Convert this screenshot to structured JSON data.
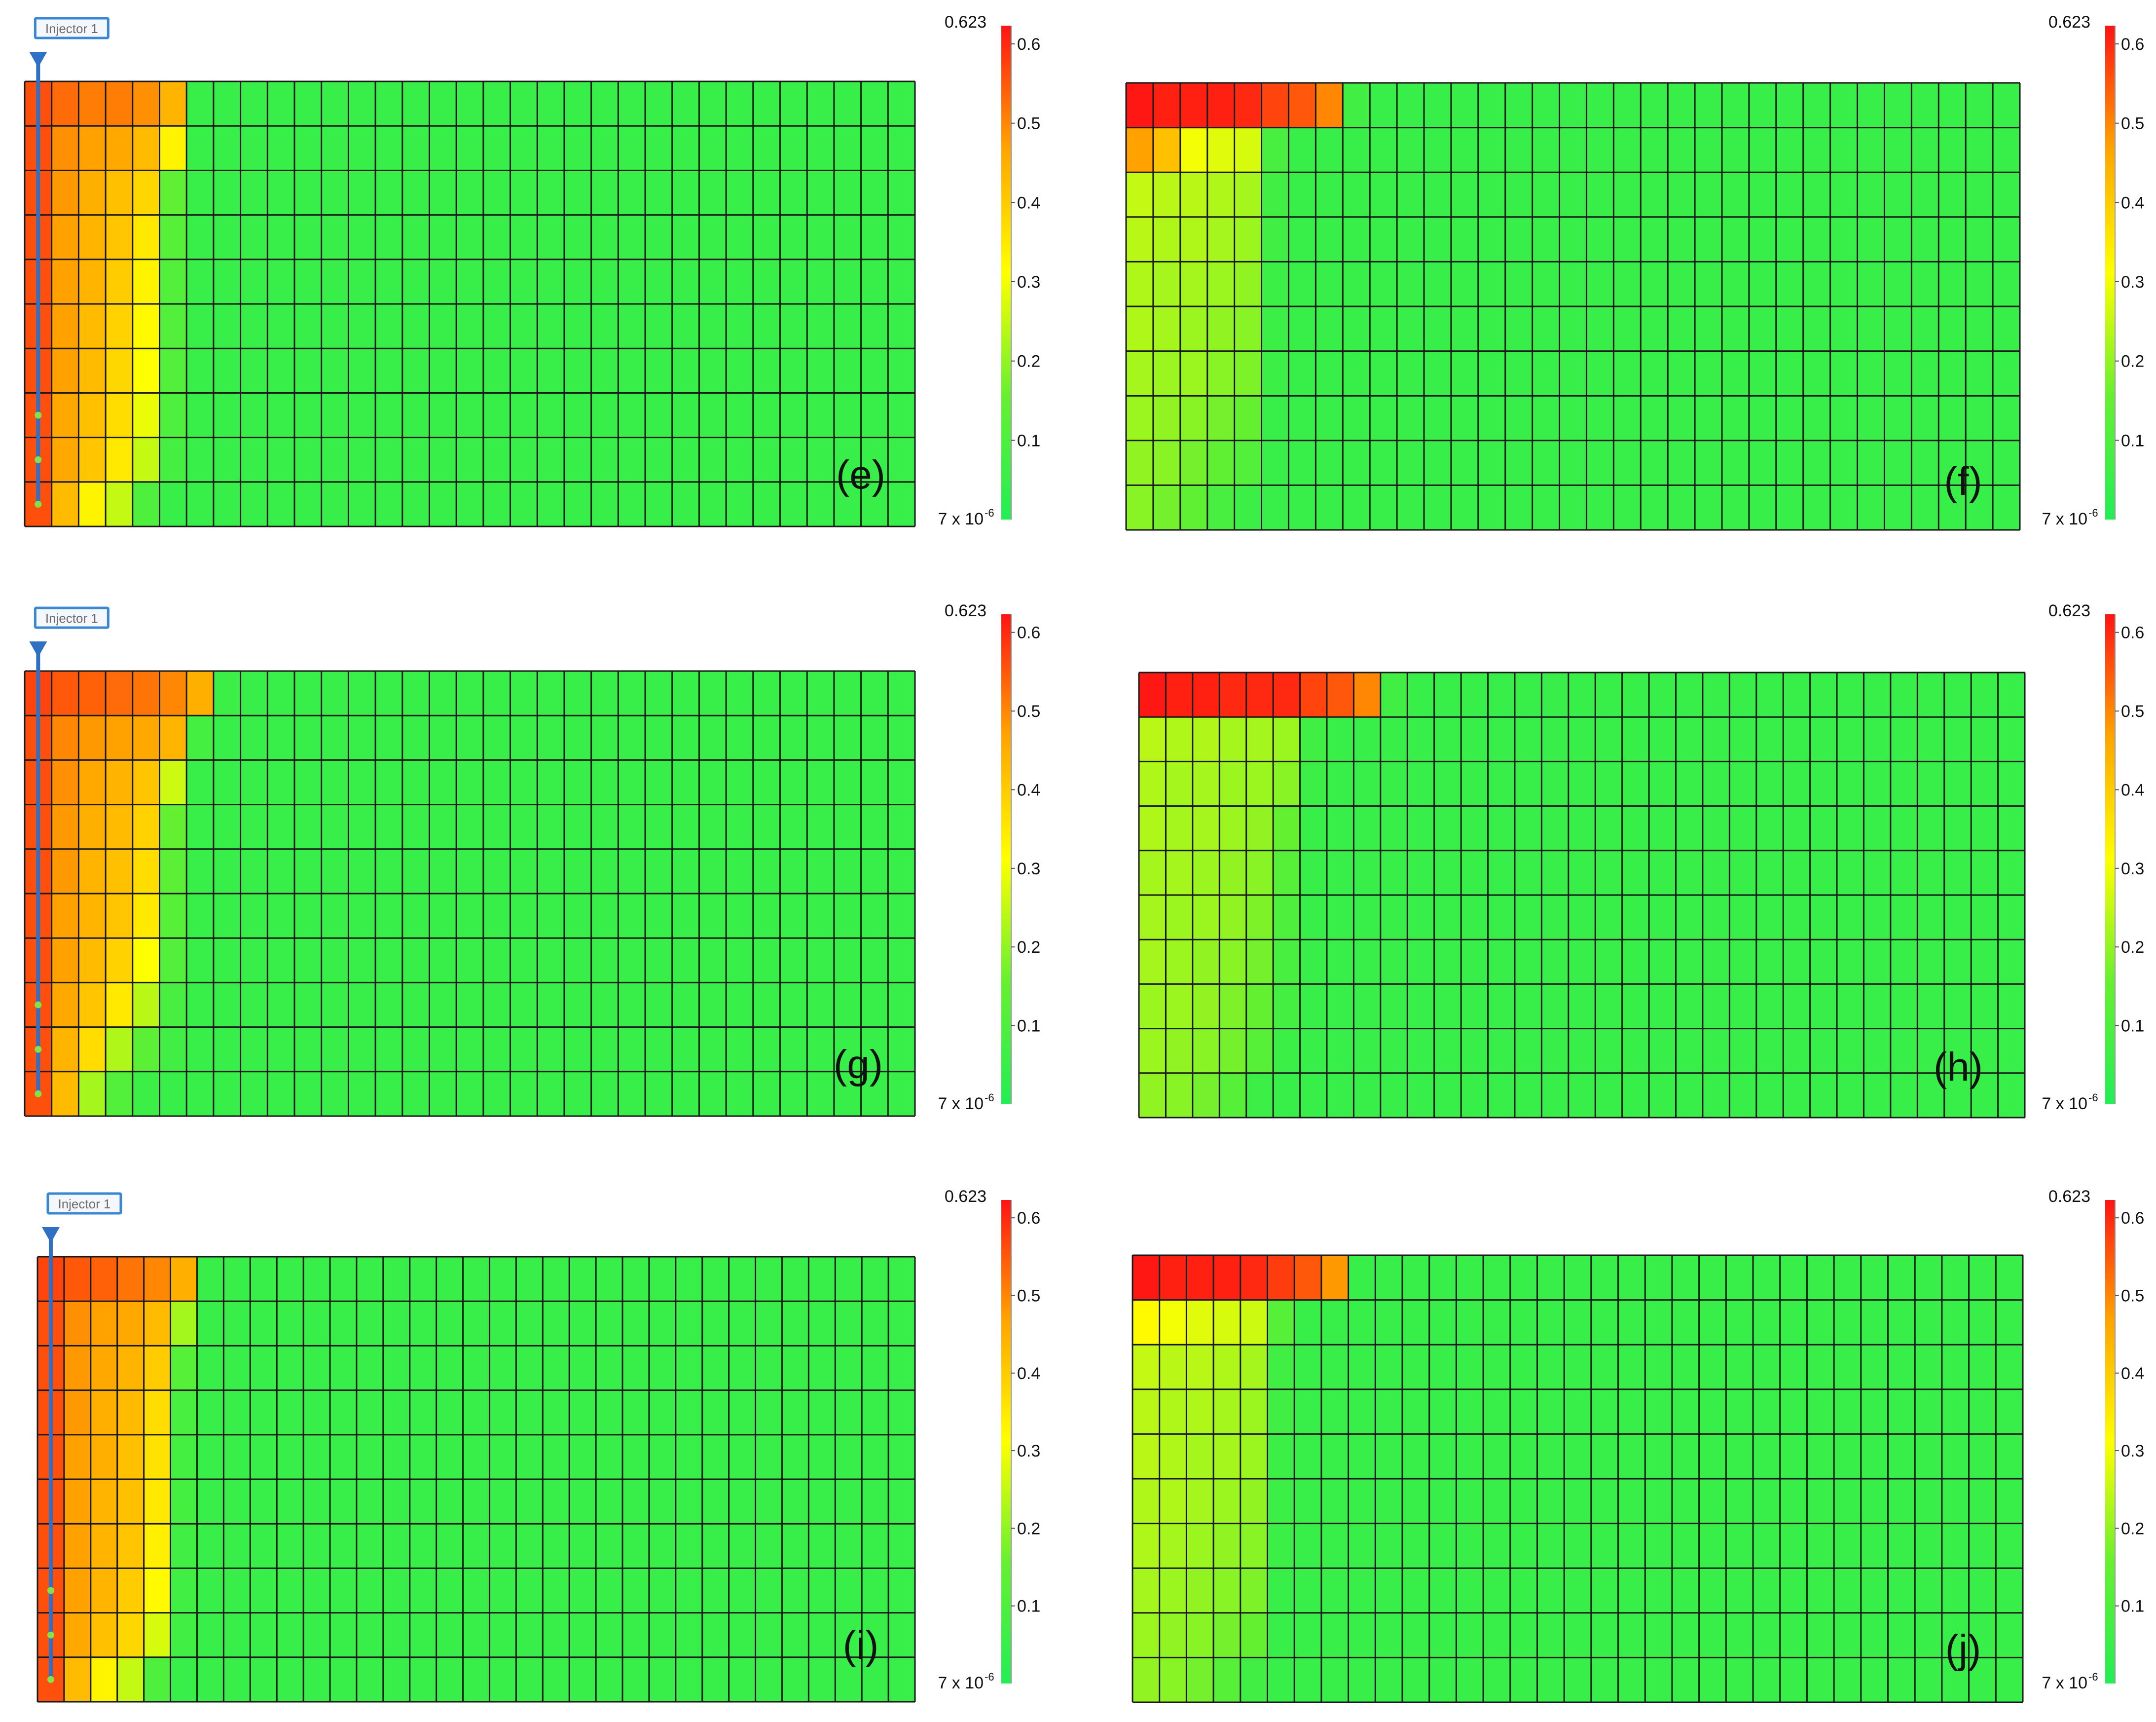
{
  "colors": {
    "scale_low": "#22ee55",
    "scale_mid": "#ffff00",
    "scale_high": "#ff1414",
    "grid_line": "#1a1a1a",
    "well_line": "#2f6fc4",
    "well_label_border": "#3a87d6",
    "well_perforation": "#7ee34f"
  },
  "well": {
    "label": "Injector 1",
    "icon": "triangle-down-icon"
  },
  "colorbar": {
    "max_label": "0.623",
    "min_label": "7 x 10",
    "min_exponent": "-6",
    "tick_values": [
      0.1,
      0.2,
      0.3,
      0.4,
      0.5,
      0.6
    ],
    "tick_labels": [
      "0.1",
      "0.2",
      "0.3",
      "0.4",
      "0.5",
      "0.6"
    ],
    "value_min": 7e-06,
    "value_max": 0.623
  },
  "panels": [
    {
      "label": "(e)",
      "has_well": true,
      "rows": [
        [
          0.56,
          0.53,
          0.51,
          0.51,
          0.49,
          0.44,
          0.05
        ],
        [
          0.56,
          0.49,
          0.47,
          0.46,
          0.43,
          0.33,
          0.05
        ],
        [
          0.56,
          0.48,
          0.45,
          0.42,
          0.38,
          0.14,
          0.05
        ],
        [
          0.56,
          0.47,
          0.44,
          0.41,
          0.35,
          0.12,
          0.05
        ],
        [
          0.56,
          0.47,
          0.44,
          0.4,
          0.33,
          0.11,
          0.05
        ],
        [
          0.56,
          0.47,
          0.43,
          0.39,
          0.32,
          0.11,
          0.05
        ],
        [
          0.56,
          0.47,
          0.43,
          0.38,
          0.31,
          0.11,
          0.05
        ],
        [
          0.56,
          0.46,
          0.42,
          0.37,
          0.29,
          0.1,
          0.05
        ],
        [
          0.56,
          0.46,
          0.41,
          0.35,
          0.25,
          0.08,
          0.05
        ],
        [
          0.56,
          0.43,
          0.33,
          0.25,
          0.1,
          0.05
        ]
      ]
    },
    {
      "label": "(f)",
      "has_well": false,
      "rows": [
        [
          0.62,
          0.61,
          0.61,
          0.61,
          0.6,
          0.57,
          0.55,
          0.5,
          0.07
        ],
        [
          0.47,
          0.42,
          0.3,
          0.28,
          0.27,
          0.09,
          0.05
        ],
        [
          0.25,
          0.24,
          0.24,
          0.23,
          0.22,
          0.07,
          0.05
        ],
        [
          0.24,
          0.23,
          0.23,
          0.22,
          0.21,
          0.07,
          0.05
        ],
        [
          0.23,
          0.22,
          0.22,
          0.21,
          0.2,
          0.06,
          0.05
        ],
        [
          0.23,
          0.22,
          0.21,
          0.2,
          0.19,
          0.06,
          0.05
        ],
        [
          0.22,
          0.21,
          0.21,
          0.19,
          0.18,
          0.06,
          0.05
        ],
        [
          0.21,
          0.2,
          0.19,
          0.17,
          0.15,
          0.05
        ],
        [
          0.2,
          0.19,
          0.17,
          0.14,
          0.11,
          0.05
        ],
        [
          0.19,
          0.17,
          0.14,
          0.09,
          0.06,
          0.05
        ]
      ]
    },
    {
      "label": "(g)",
      "has_well": true,
      "rows": [
        [
          0.57,
          0.55,
          0.54,
          0.53,
          0.52,
          0.5,
          0.45,
          0.06
        ],
        [
          0.56,
          0.5,
          0.48,
          0.47,
          0.46,
          0.44,
          0.08
        ],
        [
          0.56,
          0.49,
          0.46,
          0.44,
          0.41,
          0.26,
          0.05
        ],
        [
          0.56,
          0.48,
          0.45,
          0.43,
          0.39,
          0.15,
          0.05
        ],
        [
          0.56,
          0.48,
          0.44,
          0.42,
          0.37,
          0.13,
          0.05
        ],
        [
          0.56,
          0.47,
          0.44,
          0.41,
          0.35,
          0.12,
          0.05
        ],
        [
          0.56,
          0.47,
          0.43,
          0.39,
          0.31,
          0.11,
          0.05
        ],
        [
          0.56,
          0.46,
          0.41,
          0.35,
          0.24,
          0.09,
          0.05
        ],
        [
          0.56,
          0.44,
          0.37,
          0.23,
          0.13,
          0.07,
          0.05
        ],
        [
          0.56,
          0.43,
          0.22,
          0.11,
          0.06,
          0.05
        ]
      ]
    },
    {
      "label": "(h)",
      "has_well": false,
      "rows": [
        [
          0.62,
          0.61,
          0.61,
          0.6,
          0.6,
          0.6,
          0.57,
          0.55,
          0.5,
          0.07
        ],
        [
          0.24,
          0.23,
          0.23,
          0.22,
          0.22,
          0.21,
          0.07,
          0.05
        ],
        [
          0.23,
          0.22,
          0.22,
          0.21,
          0.21,
          0.19,
          0.06,
          0.05
        ],
        [
          0.23,
          0.22,
          0.22,
          0.21,
          0.2,
          0.15,
          0.05
        ],
        [
          0.22,
          0.22,
          0.21,
          0.2,
          0.19,
          0.12,
          0.05
        ],
        [
          0.22,
          0.21,
          0.21,
          0.2,
          0.18,
          0.1,
          0.05
        ],
        [
          0.22,
          0.21,
          0.2,
          0.19,
          0.17,
          0.09,
          0.05
        ],
        [
          0.21,
          0.21,
          0.2,
          0.18,
          0.15,
          0.08,
          0.05
        ],
        [
          0.21,
          0.2,
          0.19,
          0.17,
          0.12,
          0.06,
          0.05
        ],
        [
          0.2,
          0.19,
          0.17,
          0.12,
          0.06,
          0.05
        ]
      ]
    },
    {
      "label": "(i)",
      "has_well": true,
      "rows": [
        [
          0.57,
          0.55,
          0.54,
          0.52,
          0.5,
          0.45,
          0.05
        ],
        [
          0.56,
          0.49,
          0.47,
          0.46,
          0.43,
          0.22,
          0.05
        ],
        [
          0.56,
          0.48,
          0.46,
          0.44,
          0.4,
          0.12,
          0.05
        ],
        [
          0.56,
          0.48,
          0.45,
          0.43,
          0.37,
          0.09,
          0.05
        ],
        [
          0.56,
          0.47,
          0.45,
          0.42,
          0.36,
          0.08,
          0.05
        ],
        [
          0.56,
          0.47,
          0.44,
          0.42,
          0.35,
          0.08,
          0.05
        ],
        [
          0.56,
          0.47,
          0.44,
          0.41,
          0.34,
          0.07,
          0.05
        ],
        [
          0.56,
          0.47,
          0.44,
          0.4,
          0.32,
          0.07,
          0.05
        ],
        [
          0.56,
          0.46,
          0.42,
          0.38,
          0.27,
          0.07,
          0.05
        ],
        [
          0.56,
          0.43,
          0.33,
          0.25,
          0.1,
          0.05
        ]
      ]
    },
    {
      "label": "(j)",
      "has_well": false,
      "rows": [
        [
          0.62,
          0.61,
          0.61,
          0.61,
          0.6,
          0.58,
          0.55,
          0.48
        ],
        [
          0.32,
          0.3,
          0.28,
          0.27,
          0.26,
          0.12,
          0.05
        ],
        [
          0.25,
          0.24,
          0.24,
          0.23,
          0.22,
          0.07,
          0.05
        ],
        [
          0.24,
          0.23,
          0.23,
          0.22,
          0.21,
          0.07,
          0.05
        ],
        [
          0.24,
          0.23,
          0.22,
          0.22,
          0.21,
          0.06,
          0.05
        ],
        [
          0.23,
          0.23,
          0.22,
          0.21,
          0.2,
          0.06,
          0.05
        ],
        [
          0.23,
          0.22,
          0.21,
          0.2,
          0.19,
          0.06,
          0.05
        ],
        [
          0.22,
          0.21,
          0.2,
          0.19,
          0.18,
          0.05
        ],
        [
          0.21,
          0.2,
          0.19,
          0.17,
          0.15,
          0.05
        ],
        [
          0.2,
          0.19,
          0.17,
          0.12,
          0.07,
          0.05
        ]
      ]
    }
  ]
}
